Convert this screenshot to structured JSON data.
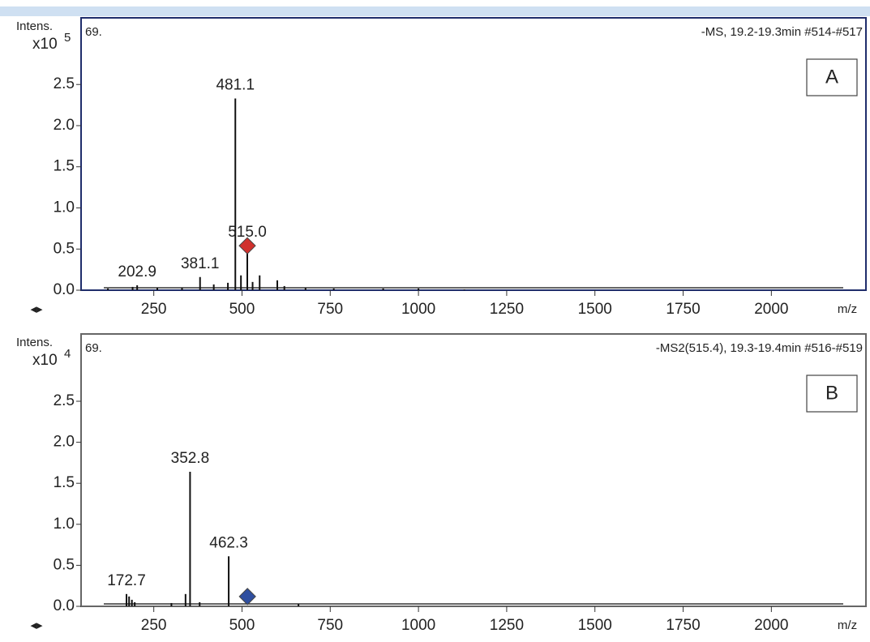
{
  "chart_data": [
    {
      "type": "stem",
      "panel_label": "A",
      "title": "-MS, 19.2-19.3min #514-#517",
      "corner_text": "69.",
      "y_label": "Intens.",
      "y_scale_label": "x10",
      "y_scale_exponent": 5,
      "x_label": "m/z",
      "color": "#111111",
      "x": [
        120,
        190,
        202.9,
        260,
        330,
        381.1,
        420,
        460,
        481.1,
        497,
        515.0,
        530,
        550,
        600,
        620,
        680,
        760,
        900,
        1000,
        1130
      ],
      "values": [
        0.02,
        0.04,
        0.06,
        0.03,
        0.03,
        0.16,
        0.07,
        0.09,
        2.33,
        0.18,
        0.54,
        0.1,
        0.18,
        0.12,
        0.05,
        0.03,
        0.02,
        0.02,
        0.02,
        0.01
      ],
      "labels": [
        null,
        null,
        "202.9",
        null,
        null,
        "381.1",
        null,
        null,
        "481.1",
        null,
        "515.0",
        null,
        null,
        null,
        null,
        null,
        null,
        null,
        null,
        null
      ],
      "precursor": {
        "x": 515.0,
        "y": 0.54,
        "color": "#d0312d"
      },
      "xlim": [
        44,
        2268
      ],
      "xticks": [
        250,
        500,
        750,
        1000,
        1250,
        1500,
        1750,
        2000
      ],
      "ylim": [
        0,
        3.31
      ],
      "yticks": [
        {
          "value": 0,
          "label": "0.0"
        },
        0.5,
        {
          "value": 1,
          "label": "1.0"
        },
        1.5,
        {
          "value": 2,
          "label": "2.0"
        },
        2.5
      ]
    },
    {
      "type": "stem",
      "panel_label": "B",
      "title": "-MS2(515.4), 19.3-19.4min #516-#519",
      "corner_text": "69.",
      "y_label": "Intens.",
      "y_scale_label": "x10",
      "y_scale_exponent": 4,
      "x_label": "m/z",
      "color": "#111111",
      "x": [
        172.7,
        180,
        188,
        196,
        300,
        340,
        352.8,
        380,
        462.3,
        660
      ],
      "values": [
        0.15,
        0.12,
        0.08,
        0.05,
        0.04,
        0.15,
        1.64,
        0.05,
        0.61,
        0.03
      ],
      "labels": [
        "172.7",
        null,
        null,
        null,
        null,
        null,
        "352.8",
        null,
        "462.3",
        null
      ],
      "precursor": {
        "x": 515.4,
        "y": 0.12,
        "color": "#2f4fa0"
      },
      "xlim": [
        44,
        2268
      ],
      "xticks": [
        250,
        500,
        750,
        1000,
        1250,
        1500,
        1750,
        2000
      ],
      "ylim": [
        0,
        3.32
      ],
      "yticks": [
        {
          "value": 0,
          "label": "0.0"
        },
        0.5,
        {
          "value": 1,
          "label": "1.0"
        },
        1.5,
        {
          "value": 2,
          "label": "2.0"
        },
        2.5
      ]
    }
  ]
}
